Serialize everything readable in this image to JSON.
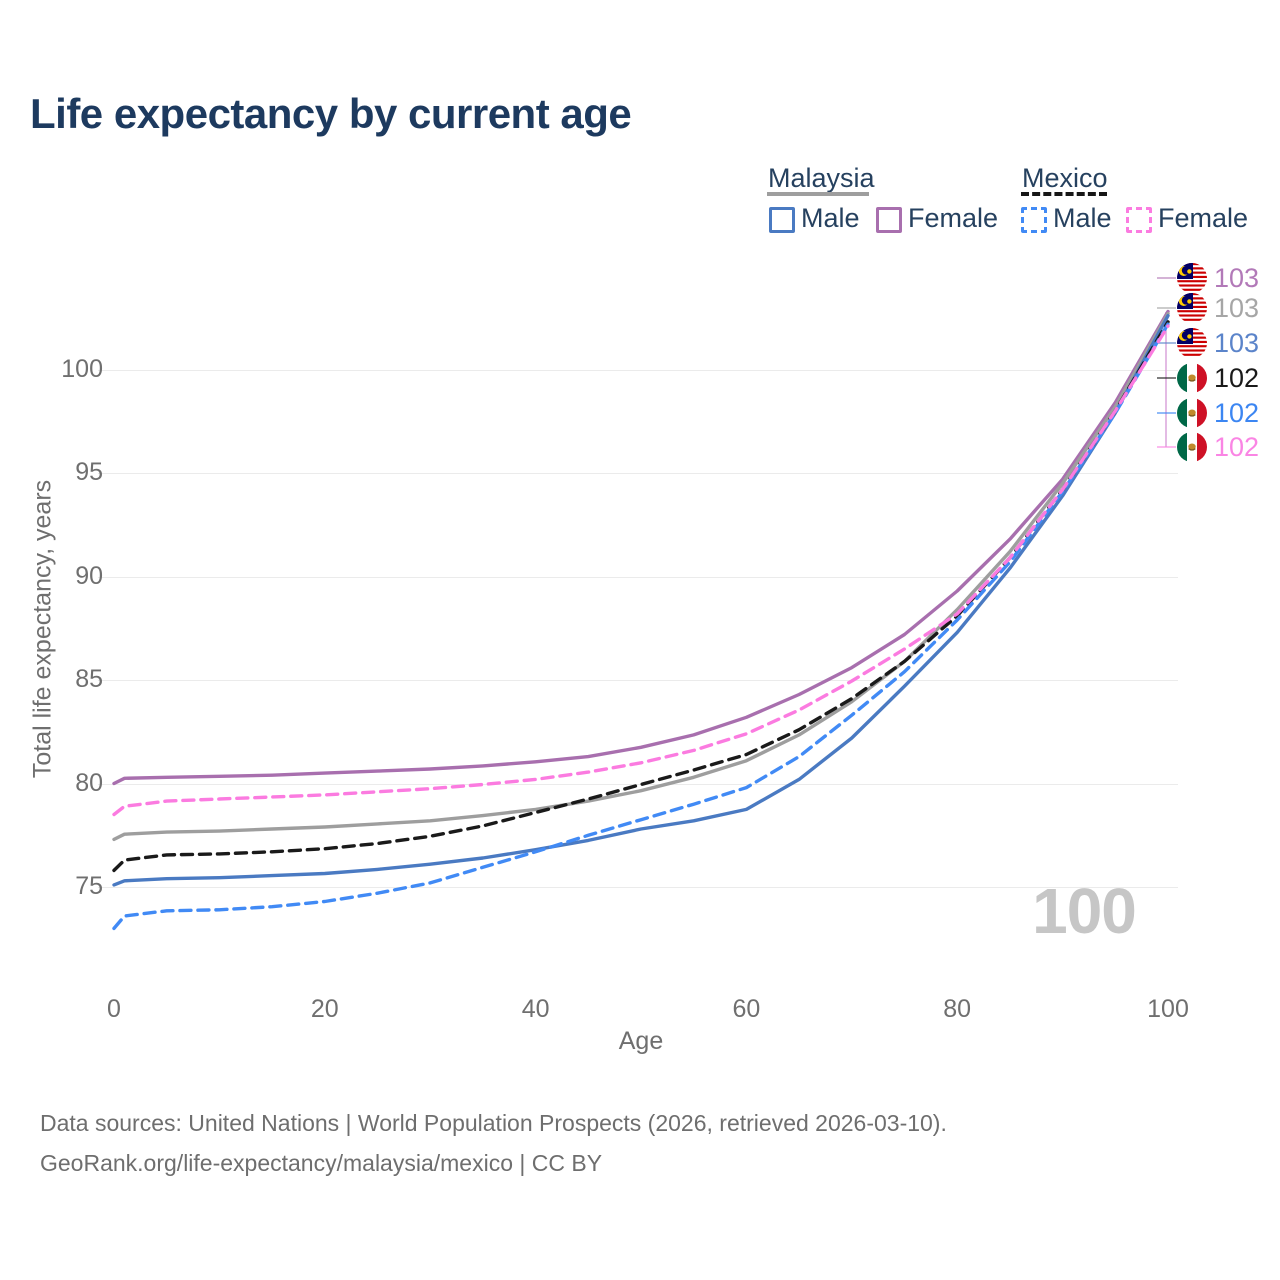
{
  "title": "Life expectancy by current age",
  "legend": {
    "malaysia": {
      "label": "Malaysia",
      "male": "Male",
      "female": "Female",
      "line_style": "solid"
    },
    "mexico": {
      "label": "Mexico",
      "male": "Male",
      "female": "Female",
      "line_style": "dashed"
    }
  },
  "chart_data": {
    "type": "line",
    "title": "Life expectancy by current age",
    "xlabel": "Age",
    "ylabel": "Total life expectancy, years",
    "xlim": [
      0,
      100
    ],
    "ylim": [
      72.5,
      103.5
    ],
    "xticks": [
      0,
      20,
      40,
      60,
      80,
      100
    ],
    "yticks": [
      75,
      80,
      85,
      90,
      95,
      100
    ],
    "grid": "horizontal",
    "legend_position": "top-right",
    "x": [
      0,
      1,
      5,
      10,
      15,
      20,
      25,
      30,
      35,
      40,
      45,
      50,
      55,
      60,
      65,
      70,
      75,
      80,
      85,
      90,
      95,
      100
    ],
    "series": [
      {
        "id": "malaysia-female",
        "name": "Malaysia Female",
        "country": "Malaysia",
        "sex": "Female",
        "color": "#a86fae",
        "label_color": "#b279b8",
        "dashed": false,
        "flag": "malaysia",
        "end_label": "103",
        "values": [
          80.0,
          80.25,
          80.3,
          80.35,
          80.4,
          80.5,
          80.6,
          80.7,
          80.85,
          81.05,
          81.3,
          81.75,
          82.35,
          83.2,
          84.3,
          85.6,
          87.2,
          89.3,
          91.8,
          94.7,
          98.4,
          102.8
        ]
      },
      {
        "id": "malaysia-total",
        "name": "Malaysia Both sexes",
        "country": "Malaysia",
        "sex": "Both",
        "color": "#9e9e9e",
        "label_color": "#a6a6a6",
        "dashed": false,
        "flag": "malaysia",
        "end_label": "103",
        "values": [
          77.3,
          77.55,
          77.65,
          77.7,
          77.8,
          77.9,
          78.05,
          78.2,
          78.45,
          78.75,
          79.15,
          79.65,
          80.3,
          81.1,
          82.35,
          83.95,
          85.9,
          88.4,
          91.2,
          94.5,
          98.2,
          102.7
        ]
      },
      {
        "id": "malaysia-male",
        "name": "Malaysia Male",
        "country": "Malaysia",
        "sex": "Male",
        "color": "#4a7ac2",
        "label_color": "#5b84ca",
        "dashed": false,
        "flag": "malaysia",
        "end_label": "103",
        "values": [
          75.1,
          75.3,
          75.4,
          75.45,
          75.55,
          75.65,
          75.85,
          76.1,
          76.4,
          76.8,
          77.25,
          77.8,
          78.2,
          78.75,
          80.2,
          82.2,
          84.7,
          87.3,
          90.4,
          93.9,
          97.9,
          102.6
        ]
      },
      {
        "id": "mexico-total",
        "name": "Mexico Both sexes",
        "country": "Mexico",
        "sex": "Both",
        "color": "#1a1a1a",
        "label_color": "#1a1a1a",
        "dashed": true,
        "flag": "mexico",
        "end_label": "102",
        "values": [
          75.8,
          76.3,
          76.55,
          76.6,
          76.7,
          76.85,
          77.1,
          77.45,
          77.95,
          78.6,
          79.25,
          79.95,
          80.65,
          81.4,
          82.6,
          84.1,
          85.9,
          88.1,
          90.9,
          94.2,
          98.0,
          102.3
        ]
      },
      {
        "id": "mexico-male",
        "name": "Mexico Male",
        "country": "Mexico",
        "sex": "Male",
        "color": "#418af5",
        "label_color": "#3c86f2",
        "dashed": true,
        "flag": "mexico",
        "end_label": "102",
        "values": [
          73.0,
          73.6,
          73.85,
          73.9,
          74.05,
          74.3,
          74.7,
          75.2,
          75.95,
          76.7,
          77.5,
          78.25,
          79.0,
          79.8,
          81.3,
          83.3,
          85.4,
          87.9,
          90.7,
          94.1,
          97.9,
          102.2
        ]
      },
      {
        "id": "mexico-female",
        "name": "Mexico Female",
        "country": "Mexico",
        "sex": "Female",
        "color": "#fb7be0",
        "label_color": "#fa85e4",
        "dashed": true,
        "flag": "mexico",
        "end_label": "102",
        "values": [
          78.5,
          78.9,
          79.15,
          79.25,
          79.35,
          79.45,
          79.6,
          79.75,
          79.95,
          80.2,
          80.55,
          81.0,
          81.6,
          82.4,
          83.55,
          84.95,
          86.5,
          88.2,
          90.9,
          94.2,
          98.0,
          102.1
        ]
      }
    ]
  },
  "watermark": "100",
  "footer": {
    "line1": "Data sources: United Nations | World Population Prospects (2026, retrieved 2026-03-10).",
    "line2": "GeoRank.org/life-expectancy/malaysia/mexico | CC BY"
  }
}
